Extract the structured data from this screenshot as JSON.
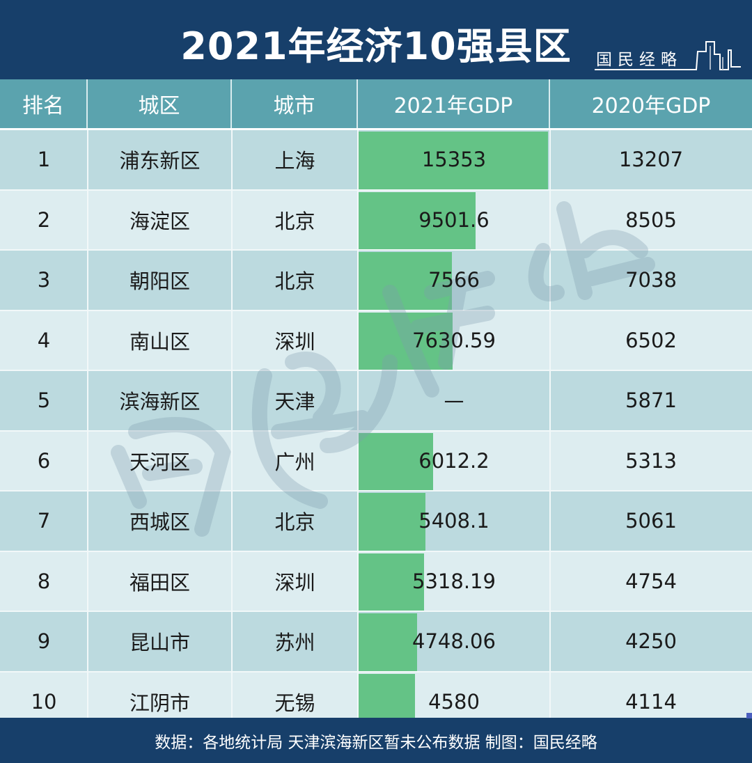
{
  "header": {
    "title": "2021年经济10强县区",
    "brand": "国民经略"
  },
  "table": {
    "columns": [
      "排名",
      "城区",
      "城市",
      "2021年GDP",
      "2020年GDP"
    ],
    "rows": [
      {
        "rank": "1",
        "district": "浦东新区",
        "city": "上海",
        "gdp2021": "15353",
        "gdp2020": "13207"
      },
      {
        "rank": "2",
        "district": "海淀区",
        "city": "北京",
        "gdp2021": "9501.6",
        "gdp2020": "8505"
      },
      {
        "rank": "3",
        "district": "朝阳区",
        "city": "北京",
        "gdp2021": "7566",
        "gdp2020": "7038"
      },
      {
        "rank": "4",
        "district": "南山区",
        "city": "深圳",
        "gdp2021": "7630.59",
        "gdp2020": "6502"
      },
      {
        "rank": "5",
        "district": "滨海新区",
        "city": "天津",
        "gdp2021": "—",
        "gdp2020": "5871"
      },
      {
        "rank": "6",
        "district": "天河区",
        "city": "广州",
        "gdp2021": "6012.2",
        "gdp2020": "5313"
      },
      {
        "rank": "7",
        "district": "西城区",
        "city": "北京",
        "gdp2021": "5408.1",
        "gdp2020": "5061"
      },
      {
        "rank": "8",
        "district": "福田区",
        "city": "深圳",
        "gdp2021": "5318.19",
        "gdp2020": "4754"
      },
      {
        "rank": "9",
        "district": "昆山市",
        "city": "苏州",
        "gdp2021": "4748.06",
        "gdp2020": "4250"
      },
      {
        "rank": "10",
        "district": "江阴市",
        "city": "无锡",
        "gdp2021": "4580",
        "gdp2020": "4114"
      }
    ]
  },
  "footer": {
    "note": "数据：各地统计局 天津滨海新区暂未公布数据 制图：国民经略"
  },
  "colors": {
    "navy": "#173f6a",
    "header_teal": "#5ba3ae",
    "row_dark": "#bcdadf",
    "row_light": "#ddedf0",
    "bar_green": "#64c386"
  },
  "chart_data": {
    "type": "table",
    "title": "2021年经济10强县区",
    "columns": [
      "排名",
      "城区",
      "城市",
      "2021年GDP",
      "2020年GDP"
    ],
    "categories": [
      "浦东新区",
      "海淀区",
      "朝阳区",
      "南山区",
      "滨海新区",
      "天河区",
      "西城区",
      "福田区",
      "昆山市",
      "江阴市"
    ],
    "cities": [
      "上海",
      "北京",
      "北京",
      "深圳",
      "天津",
      "广州",
      "北京",
      "深圳",
      "苏州",
      "无锡"
    ],
    "series": [
      {
        "name": "2021年GDP",
        "values": [
          15353,
          9501.6,
          7566,
          7630.59,
          null,
          6012.2,
          5408.1,
          5318.19,
          4748.06,
          4580
        ],
        "rendering": "in-cell data bars"
      },
      {
        "name": "2020年GDP",
        "values": [
          13207,
          8505,
          7038,
          6502,
          5871,
          5313,
          5061,
          4754,
          4250,
          4114
        ]
      }
    ],
    "annotations": [
      "天津滨海新区暂未公布数据"
    ],
    "source": "数据：各地统计局 制图：国民经略"
  }
}
